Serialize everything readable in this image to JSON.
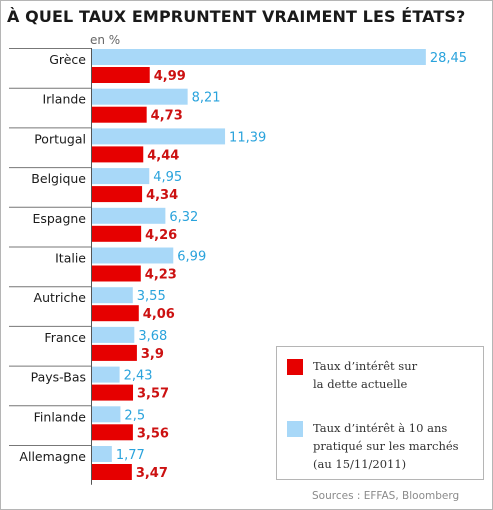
{
  "chart_data": {
    "type": "bar",
    "orientation": "horizontal",
    "title": "À QUEL TAUX EMPRUNTENT VRAIMENT LES ÉTATS?",
    "unit_label": "en %",
    "categories": [
      "Grèce",
      "Irlande",
      "Portugal",
      "Belgique",
      "Espagne",
      "Italie",
      "Autriche",
      "France",
      "Pays-Bas",
      "Finlande",
      "Allemagne"
    ],
    "series": [
      {
        "name": "Taux d’intérêt à 10 ans pratiqué sur les marchés (au 15/11/2011)",
        "color": "#a8d8f8",
        "label_color": "#2aa3dc",
        "values": [
          28.45,
          8.21,
          11.39,
          4.95,
          6.32,
          6.99,
          3.55,
          3.68,
          2.43,
          2.5,
          1.77
        ],
        "labels": [
          "28,45",
          "8,21",
          "11,39",
          "4,95",
          "6,32",
          "6,99",
          "3,55",
          "3,68",
          "2,43",
          "2,5",
          "1,77"
        ]
      },
      {
        "name": "Taux d’intérêt sur la dette actuelle",
        "color": "#e60000",
        "label_color": "#cc1111",
        "values": [
          4.99,
          4.73,
          4.44,
          4.34,
          4.26,
          4.23,
          4.06,
          3.9,
          3.57,
          3.56,
          3.47
        ],
        "labels": [
          "4,99",
          "4,73",
          "4,44",
          "4,34",
          "4,26",
          "4,23",
          "4,06",
          "3,9",
          "3,57",
          "3,56",
          "3,47"
        ]
      }
    ],
    "xlim": [
      0,
      28.45
    ],
    "grid": false,
    "legend_position": "bottom-right",
    "source": "Sources : EFFAS, Bloomberg"
  },
  "legend": {
    "red_line1": "Taux d’intérêt sur",
    "red_line2": "la dette actuelle",
    "blue_line1": "Taux d’intérêt à 10 ans",
    "blue_line2": "pratiqué sur les marchés",
    "blue_line3": "(au 15/11/2011)"
  }
}
